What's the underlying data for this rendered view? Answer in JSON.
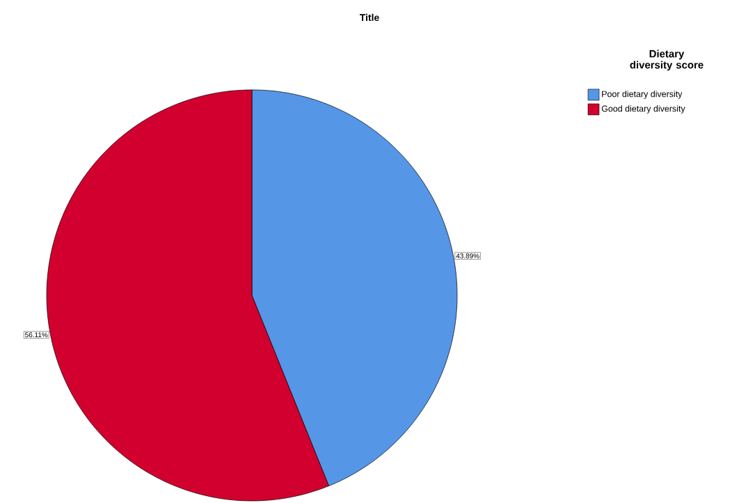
{
  "chart_data": {
    "type": "pie",
    "title": "Title",
    "legend_title": "Dietary diversity score",
    "categories": [
      "Poor dietary diversity",
      "Good dietary diversity"
    ],
    "values": [
      43.89,
      56.11
    ],
    "colors": [
      "#5596e6",
      "#d2002e"
    ],
    "value_labels": [
      "43.89%",
      "56.11%"
    ],
    "legend": "top right"
  }
}
